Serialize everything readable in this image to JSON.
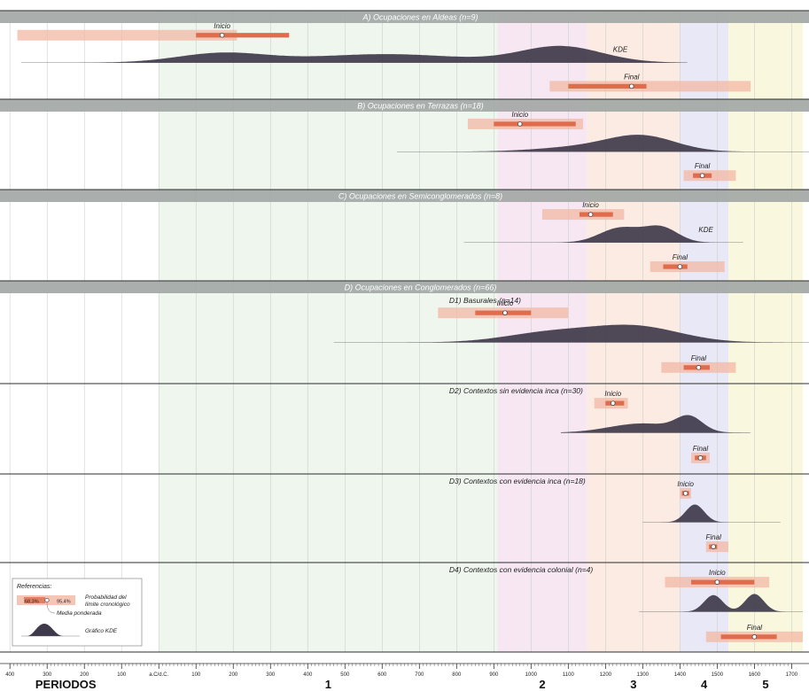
{
  "chart_data": {
    "type": "range",
    "x_axis": {
      "min": -410,
      "max": 1730,
      "tick_labels": [
        {
          "v": -400,
          "t": "400"
        },
        {
          "v": -300,
          "t": "300"
        },
        {
          "v": -200,
          "t": "200"
        },
        {
          "v": -100,
          "t": "100"
        },
        {
          "v": 0,
          "t": "a.C/d.C."
        },
        {
          "v": 100,
          "t": "100"
        },
        {
          "v": 200,
          "t": "200"
        },
        {
          "v": 300,
          "t": "300"
        },
        {
          "v": 400,
          "t": "400"
        },
        {
          "v": 500,
          "t": "500"
        },
        {
          "v": 600,
          "t": "600"
        },
        {
          "v": 700,
          "t": "700"
        },
        {
          "v": 800,
          "t": "800"
        },
        {
          "v": 900,
          "t": "900"
        },
        {
          "v": 1000,
          "t": "1000"
        },
        {
          "v": 1100,
          "t": "1100"
        },
        {
          "v": 1200,
          "t": "1200"
        },
        {
          "v": 1300,
          "t": "1300"
        },
        {
          "v": 1400,
          "t": "1400"
        },
        {
          "v": 1500,
          "t": "1500"
        },
        {
          "v": 1600,
          "t": "1600"
        },
        {
          "v": 1700,
          "t": "1700"
        }
      ]
    },
    "periods_label": "PERIODOS",
    "periods": [
      {
        "label": "1",
        "start": 0,
        "end": 910,
        "color": "#eef6ee"
      },
      {
        "label": "2",
        "start": 910,
        "end": 1150,
        "color": "#f6e7f3"
      },
      {
        "label": "3",
        "start": 1150,
        "end": 1400,
        "color": "#fbebe2"
      },
      {
        "label": "4",
        "start": 1400,
        "end": 1530,
        "color": "#e9e8f6"
      },
      {
        "label": "5",
        "start": 1530,
        "end": 1730,
        "color": "#f9f8df"
      }
    ],
    "sections": [
      {
        "title": "A) Ocupaciones en Aldeas (n=9)",
        "header": true,
        "panels": [
          {
            "title": "",
            "inicio": {
              "label": "Inicio",
              "outer": [
                -380,
                210
              ],
              "inner": [
                100,
                350
              ],
              "median": 170
            },
            "kde": {
              "label": "KDE",
              "range": [
                -370,
                1420
              ],
              "peaks": [
                {
                  "mu": 170,
                  "sig": 120,
                  "a": 0.55
                },
                {
                  "mu": 610,
                  "sig": 200,
                  "a": 0.5
                },
                {
                  "mu": 1080,
                  "sig": 110,
                  "a": 0.95
                }
              ]
            },
            "final": {
              "label": "Final",
              "outer": [
                1050,
                1590
              ],
              "inner": [
                1100,
                1310
              ],
              "median": 1270
            }
          }
        ]
      },
      {
        "title": "B) Ocupaciones en Terrazas (n=18)",
        "header": true,
        "panels": [
          {
            "title": "",
            "inicio": {
              "label": "Inicio",
              "outer": [
                830,
                1140
              ],
              "inner": [
                900,
                1120
              ],
              "median": 970
            },
            "kde": {
              "label": "",
              "range": [
                640,
                1820
              ],
              "peaks": [
                {
                  "mu": 1300,
                  "sig": 90,
                  "a": 0.95
                },
                {
                  "mu": 1160,
                  "sig": 130,
                  "a": 0.35
                }
              ]
            },
            "final": {
              "label": "Final",
              "outer": [
                1410,
                1550
              ],
              "inner": [
                1435,
                1485
              ],
              "median": 1460
            }
          }
        ]
      },
      {
        "title": "C) Ocupaciones en Semiconglomerados (n=8)",
        "header": true,
        "panels": [
          {
            "title": "",
            "inicio": {
              "label": "Inicio",
              "outer": [
                1030,
                1250
              ],
              "inner": [
                1130,
                1220
              ],
              "median": 1160
            },
            "kde": {
              "label": "KDE",
              "range": [
                820,
                1570
              ],
              "peaks": [
                {
                  "mu": 1240,
                  "sig": 55,
                  "a": 0.85
                },
                {
                  "mu": 1350,
                  "sig": 45,
                  "a": 0.85
                }
              ]
            },
            "final": {
              "label": "Final",
              "outer": [
                1320,
                1520
              ],
              "inner": [
                1355,
                1420
              ],
              "median": 1400
            }
          }
        ]
      },
      {
        "title": "D) Ocupaciones en Conglomerados (n=66)",
        "header": true,
        "panels": [
          {
            "title": "D1) Basurales (n=14)",
            "inicio": {
              "label": "Inicio",
              "outer": [
                750,
                1100
              ],
              "inner": [
                850,
                1000
              ],
              "median": 930
            },
            "kde": {
              "label": "",
              "range": [
                470,
                1800
              ],
              "peaks": [
                {
                  "mu": 1280,
                  "sig": 120,
                  "a": 0.9
                },
                {
                  "mu": 1050,
                  "sig": 120,
                  "a": 0.55
                }
              ]
            },
            "final": {
              "label": "Final",
              "outer": [
                1350,
                1550
              ],
              "inner": [
                1410,
                1480
              ],
              "median": 1450
            }
          },
          {
            "title": "D2) Contextos sin evidencia inca (n=30)",
            "inicio": {
              "label": "Inicio",
              "outer": [
                1170,
                1260
              ],
              "inner": [
                1200,
                1250
              ],
              "median": 1220
            },
            "kde": {
              "label": "",
              "range": [
                1080,
                1590
              ],
              "peaks": [
                {
                  "mu": 1425,
                  "sig": 35,
                  "a": 0.9
                },
                {
                  "mu": 1300,
                  "sig": 90,
                  "a": 0.6
                }
              ]
            },
            "final": {
              "label": "Final",
              "outer": [
                1430,
                1480
              ],
              "inner": [
                1440,
                1470
              ],
              "median": 1455
            }
          },
          {
            "title": "D3) Contextos con evidencia inca (n=18)",
            "inicio": {
              "label": "Inicio",
              "outer": [
                1400,
                1430
              ],
              "inner": [
                1405,
                1425
              ],
              "median": 1415
            },
            "kde": {
              "label": "",
              "range": [
                1300,
                1670
              ],
              "peaks": [
                {
                  "mu": 1440,
                  "sig": 25,
                  "a": 0.9
                }
              ]
            },
            "final": {
              "label": "Final",
              "outer": [
                1470,
                1530
              ],
              "inner": [
                1478,
                1500
              ],
              "median": 1490
            }
          },
          {
            "title": "D4) Contextos con evidencia colonial (n=4)",
            "inicio": {
              "label": "Inicio",
              "outer": [
                1360,
                1640
              ],
              "inner": [
                1430,
                1600
              ],
              "median": 1500
            },
            "kde": {
              "label": "",
              "range": [
                1290,
                1730
              ],
              "peaks": [
                {
                  "mu": 1490,
                  "sig": 25,
                  "a": 0.7
                },
                {
                  "mu": 1600,
                  "sig": 25,
                  "a": 0.75
                }
              ]
            },
            "final": {
              "label": "Final",
              "outer": [
                1470,
                1730
              ],
              "inner": [
                1510,
                1660
              ],
              "median": 1600
            }
          }
        ]
      }
    ],
    "legend": {
      "title": "Referencias:",
      "inner_label": "68,3%",
      "outer_label": "95,4%",
      "prob_label_1": "Probabilidad del",
      "prob_label_2": "límite cronológico",
      "median_label": "Media ponderada",
      "kde_label": "Gráfico KDE"
    },
    "colors": {
      "outer": "#f2b8a4",
      "inner": "#e06c4e",
      "kde": "#3f3a4b",
      "header_bg": "#a3a8a6",
      "header_text": "#ffffff",
      "divider": "#2c2c2c",
      "grid": "#c8d2cc",
      "text": "#222222"
    }
  }
}
